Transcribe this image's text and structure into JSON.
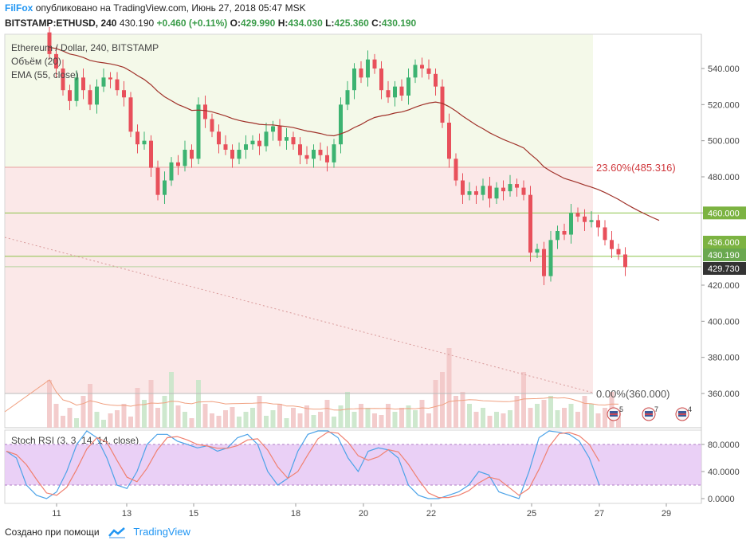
{
  "header": {
    "brand": "FilFox",
    "published": "опубликовано на TradingView.com, Июнь 27, 2018 05:47 MSK",
    "symbol": "BITSTAMP:ETHUSD, 240",
    "last": "430.190",
    "change": "+0.460 (+0.11%)",
    "o_label": "O:",
    "o": "429.990",
    "h_label": "H:",
    "h": "434.030",
    "l_label": "L:",
    "l": "425.360",
    "c_label": "C:",
    "c": "430.190"
  },
  "legend": {
    "title": "Ethereum / Dollar, 240, BITSTAMP",
    "volume": "Объём (20)",
    "ema": "EMA (55, close)"
  },
  "stoch_label": "Stoch RSI (3, 3, 14, 14, close)",
  "footer": {
    "created": "Создано при помощи",
    "tv": "TradingView"
  },
  "colors": {
    "up": "#3cb371",
    "down": "#e8505b",
    "ema": "#a0322a",
    "level": "#8bc34a",
    "fib_upper_zone": "#f4f9e9",
    "fib_lower_zone": "#fbe8e8",
    "stoch_band": "#e6c8f4",
    "stoch_k": "#4da3e8",
    "stoch_d": "#f08070"
  },
  "chart_data": {
    "type": "candlestick",
    "x_ticks": [
      "11",
      "13",
      "15",
      "18",
      "20",
      "22",
      "25",
      "27",
      "29"
    ],
    "y_ticks": [
      "540.000",
      "520.000",
      "500.000",
      "480.000",
      "460.000",
      "420.000",
      "400.000",
      "380.000",
      "360.000"
    ],
    "ylim": [
      348,
      552
    ],
    "price_labels": [
      {
        "text": "460.000",
        "value": 460.0,
        "bg": "#7cb342"
      },
      {
        "text": "436.000",
        "value": 436.0,
        "bg": "#7cb342"
      },
      {
        "text": "430.190",
        "value": 430.19,
        "bg": "#6aa84f"
      },
      {
        "text": "429.730",
        "value": 429.73,
        "bg": "#333333"
      }
    ],
    "fib_levels": [
      {
        "text": "23.60%(485.316)",
        "value": 485.316
      },
      {
        "text": "0.00%(360.000)",
        "value": 360.0
      }
    ],
    "horizontal_levels": [
      460.0,
      436.0,
      430.19
    ],
    "event_badges": [
      "5",
      "7",
      "4"
    ],
    "stoch_rsi": {
      "ticks": [
        "80.0000",
        "40.0000",
        "0.0000"
      ],
      "band": [
        20,
        80
      ]
    }
  }
}
